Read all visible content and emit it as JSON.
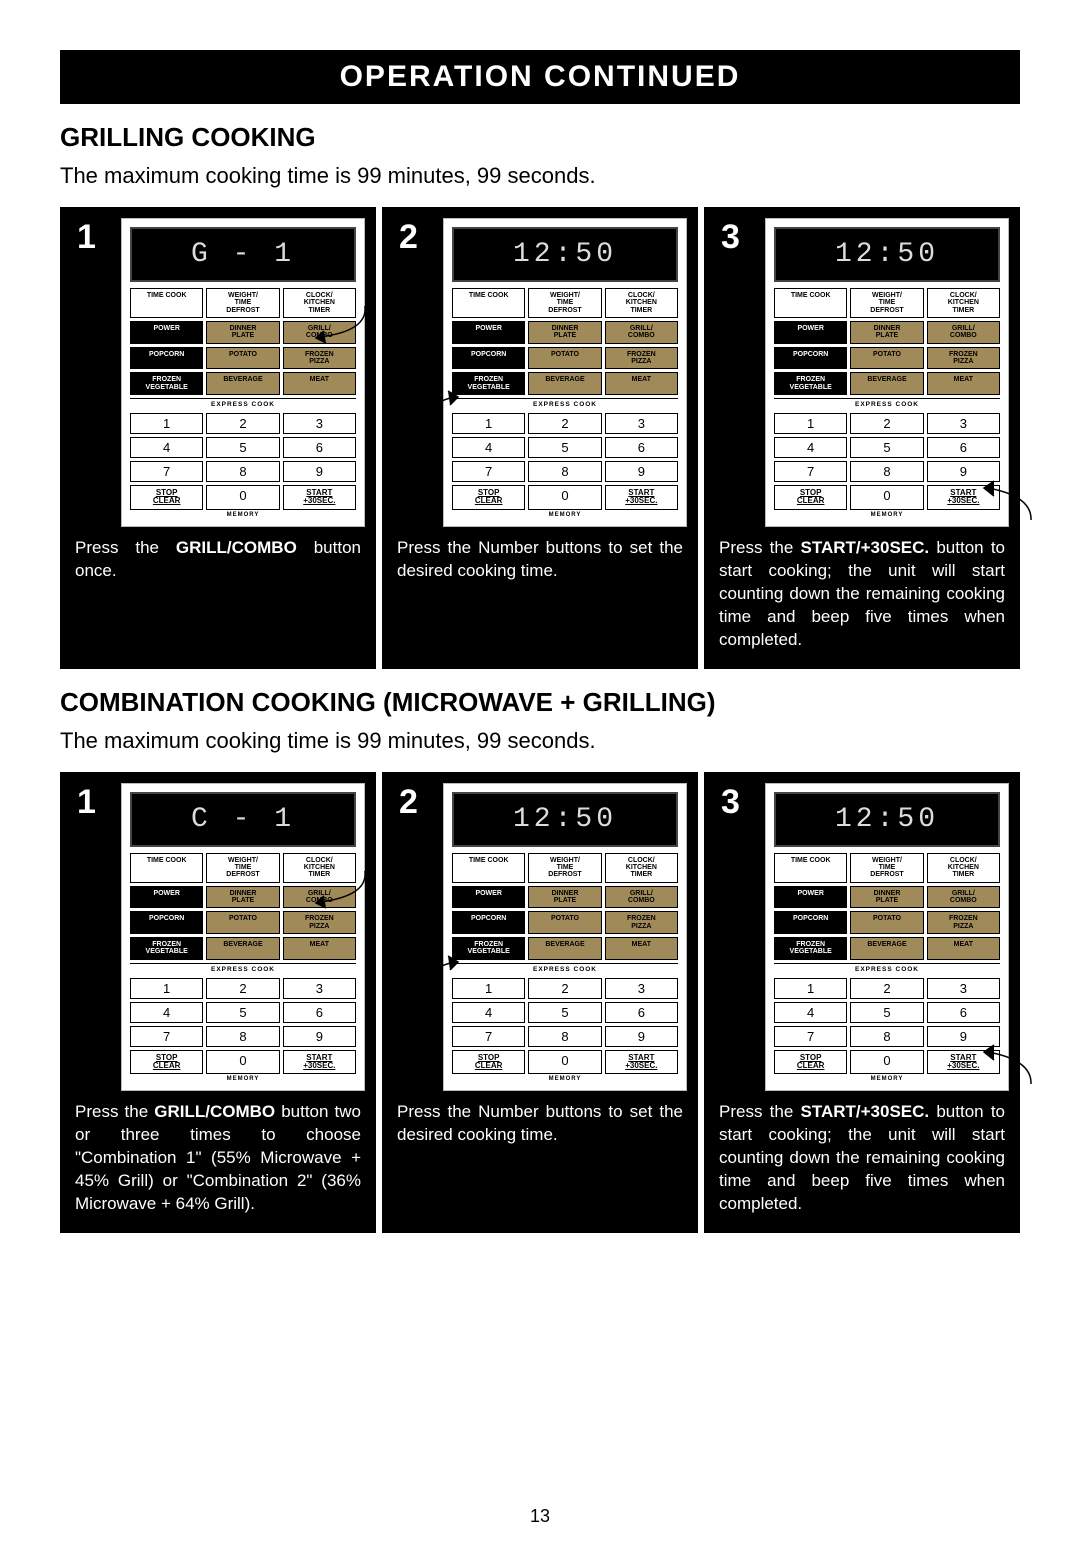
{
  "header": "OPERATION  CONTINUED",
  "page_number": "13",
  "panel": {
    "buttons_row1": [
      "TIME COOK",
      "WEIGHT/\nTIME\nDEFROST",
      "CLOCK/\nKITCHEN\nTIMER"
    ],
    "buttons_row2": [
      "POWER",
      "DINNER\nPLATE",
      "GRILL/\nCOMBO"
    ],
    "buttons_row3": [
      "POPCORN",
      "POTATO",
      "FROZEN\nPIZZA"
    ],
    "buttons_row4": [
      "FROZEN\nVEGETABLE",
      "BEVERAGE",
      "MEAT"
    ],
    "express": "EXPRESS COOK",
    "numbers": [
      "1",
      "2",
      "3",
      "4",
      "5",
      "6",
      "7",
      "8",
      "9"
    ],
    "bottom": [
      "STOP\nCLEAR",
      "0",
      "START\n+30SEC."
    ],
    "memory": "MEMORY"
  },
  "sections": [
    {
      "title": "GRILLING COOKING",
      "subtitle": "The maximum cooking time is 99 minutes, 99 seconds.",
      "steps": [
        {
          "num": "1",
          "display": "G - 1",
          "pointer": "grill",
          "caption_html": "Press the <b>GRILL/COMBO</b> button once."
        },
        {
          "num": "2",
          "display": "12:50",
          "pointer": "numpad",
          "caption_html": "Press the Number buttons to set the desired cooking time."
        },
        {
          "num": "3",
          "display": "12:50",
          "pointer": "start",
          "caption_html": "Press the <b>START/+30SEC.</b> button to start cooking; the unit will start counting down the remaining cooking time and beep five times when completed."
        }
      ]
    },
    {
      "title": "COMBINATION COOKING (MICROWAVE + GRILLING)",
      "subtitle": "The maximum cooking time is 99 minutes, 99 seconds.",
      "steps": [
        {
          "num": "1",
          "display": "C - 1",
          "pointer": "grill",
          "caption_html": "Press the <b>GRILL/COMBO</b> button two or three times to choose \"Combination 1\" (55% Microwave + 45% Grill) or \"Combination 2\" (36% Microwave + 64% Grill)."
        },
        {
          "num": "2",
          "display": "12:50",
          "pointer": "numpad",
          "caption_html": "Press the Number buttons to set the desired cooking time."
        },
        {
          "num": "3",
          "display": "12:50",
          "pointer": "start",
          "caption_html": "Press the <b>START/+30SEC.</b> button to start cooking; the unit will start counting down the remaining cooking time and beep five times when completed."
        }
      ]
    }
  ]
}
